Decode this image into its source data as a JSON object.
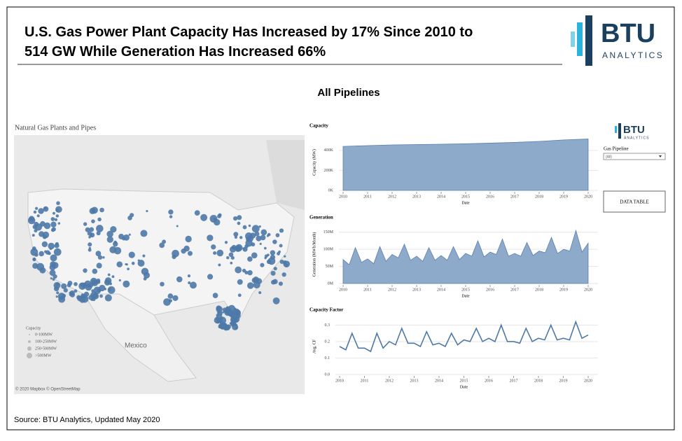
{
  "header": {
    "title": "U.S. Gas Power Plant Capacity Has Increased by 17% Since 2010 to 514 GW While Generation Has Increased 66%",
    "logo": "BTU",
    "logo_sub": "ANALYTICS"
  },
  "dashboard_title": "All Pipelines",
  "map": {
    "title": "Natural Gas Plants and Pipes",
    "country_label": "Mexico",
    "legend_title": "Capacity",
    "legend_items": [
      "0-100MW",
      "100-250MW",
      "250-500MW",
      ">500MW"
    ],
    "attribution": "© 2020 Mapbox © OpenStreetMap"
  },
  "sidebar": {
    "logo": "BTU",
    "logo_sub": "ANALYTICS",
    "filter_label": "Gas Pipeline",
    "filter_value": "(All)",
    "button": "DATA TABLE"
  },
  "source": "Source: BTU Analytics, Updated May 2020",
  "chart_data": [
    {
      "type": "area",
      "title": "Capacity",
      "x_label": "Date",
      "y_label": "Capacity (MW)",
      "color": "#8eaacb",
      "x": [
        2010,
        2011,
        2012,
        2013,
        2014,
        2015,
        2016,
        2017,
        2018,
        2019,
        2020
      ],
      "values": [
        440000,
        448000,
        455000,
        458000,
        462000,
        466000,
        473000,
        480000,
        490000,
        505000,
        514000
      ],
      "xlim": [
        2010,
        2020
      ],
      "xticks": [
        2010,
        2011,
        2012,
        2013,
        2014,
        2015,
        2016,
        2017,
        2018,
        2019,
        2020
      ],
      "ylim": [
        0,
        560000
      ],
      "yticks": [
        {
          "value": 0,
          "label": "0K"
        },
        {
          "value": 200000,
          "label": "200K"
        },
        {
          "value": 400000,
          "label": "400K"
        }
      ],
      "grid": true
    },
    {
      "type": "area",
      "title": "Generation",
      "x_label": "Date",
      "y_label": "Generation (MWh/Month)",
      "color": "#8eaacb",
      "x": [
        2010,
        2010.25,
        2010.5,
        2010.75,
        2011,
        2011.25,
        2011.5,
        2011.75,
        2012,
        2012.25,
        2012.5,
        2012.75,
        2013,
        2013.25,
        2013.5,
        2013.75,
        2014,
        2014.25,
        2014.5,
        2014.75,
        2015,
        2015.25,
        2015.5,
        2015.75,
        2016,
        2016.25,
        2016.5,
        2016.75,
        2017,
        2017.25,
        2017.5,
        2017.75,
        2018,
        2018.25,
        2018.5,
        2018.75,
        2019,
        2019.25,
        2019.5,
        2019.75,
        2020
      ],
      "values": [
        70000000,
        55000000,
        105000000,
        62000000,
        72000000,
        58000000,
        108000000,
        65000000,
        85000000,
        75000000,
        115000000,
        68000000,
        80000000,
        65000000,
        105000000,
        68000000,
        82000000,
        68000000,
        108000000,
        70000000,
        88000000,
        80000000,
        125000000,
        78000000,
        92000000,
        85000000,
        130000000,
        80000000,
        88000000,
        80000000,
        120000000,
        82000000,
        95000000,
        90000000,
        135000000,
        88000000,
        100000000,
        95000000,
        155000000,
        92000000,
        118000000
      ],
      "xlim": [
        2010,
        2020
      ],
      "xticks": [
        2010,
        2011,
        2012,
        2013,
        2014,
        2015,
        2016,
        2017,
        2018,
        2019,
        2020
      ],
      "ylim": [
        0,
        170000000
      ],
      "yticks": [
        {
          "value": 0,
          "label": "0M"
        },
        {
          "value": 50000000,
          "label": "50M"
        },
        {
          "value": 100000000,
          "label": "100M"
        },
        {
          "value": 150000000,
          "label": "150M"
        }
      ],
      "grid": true
    },
    {
      "type": "line",
      "title": "Capacity Factor",
      "x_label": "Date",
      "y_label": "Avg. CF",
      "color": "#4e79a7",
      "x": [
        2010,
        2010.25,
        2010.5,
        2010.75,
        2011,
        2011.25,
        2011.5,
        2011.75,
        2012,
        2012.25,
        2012.5,
        2012.75,
        2013,
        2013.25,
        2013.5,
        2013.75,
        2014,
        2014.25,
        2014.5,
        2014.75,
        2015,
        2015.25,
        2015.5,
        2015.75,
        2016,
        2016.25,
        2016.5,
        2016.75,
        2017,
        2017.25,
        2017.5,
        2017.75,
        2018,
        2018.25,
        2018.5,
        2018.75,
        2019,
        2019.25,
        2019.5,
        2019.75,
        2020
      ],
      "values": [
        0.17,
        0.15,
        0.25,
        0.16,
        0.16,
        0.14,
        0.25,
        0.16,
        0.2,
        0.18,
        0.28,
        0.19,
        0.19,
        0.17,
        0.26,
        0.18,
        0.19,
        0.17,
        0.25,
        0.18,
        0.21,
        0.2,
        0.28,
        0.2,
        0.22,
        0.2,
        0.3,
        0.2,
        0.2,
        0.19,
        0.28,
        0.2,
        0.22,
        0.21,
        0.3,
        0.21,
        0.22,
        0.21,
        0.32,
        0.22,
        0.24
      ],
      "xlim": [
        2010,
        2020
      ],
      "xticks": [
        2010,
        2011,
        2012,
        2013,
        2014,
        2015,
        2016,
        2017,
        2018,
        2019,
        2020
      ],
      "ylim": [
        0,
        0.34
      ],
      "yticks": [
        {
          "value": 0,
          "label": "0.0"
        },
        0.1,
        0.2,
        0.3
      ],
      "grid": true
    }
  ]
}
